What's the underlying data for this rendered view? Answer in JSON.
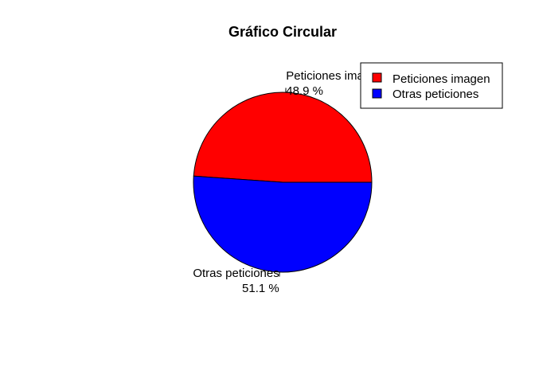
{
  "chart_data": {
    "type": "pie",
    "title": "Gráfico Circular",
    "slices": [
      {
        "label": "Peticiones imagen",
        "value": 48.9,
        "percent_label": "48.9 %",
        "color": "#ff0000"
      },
      {
        "label": "Otras peticiones",
        "value": 51.1,
        "percent_label": "51.1 %",
        "color": "#0000ff"
      }
    ],
    "legend": {
      "position": "top-right",
      "entries": [
        "Peticiones imagen",
        "Otras peticiones"
      ]
    }
  }
}
